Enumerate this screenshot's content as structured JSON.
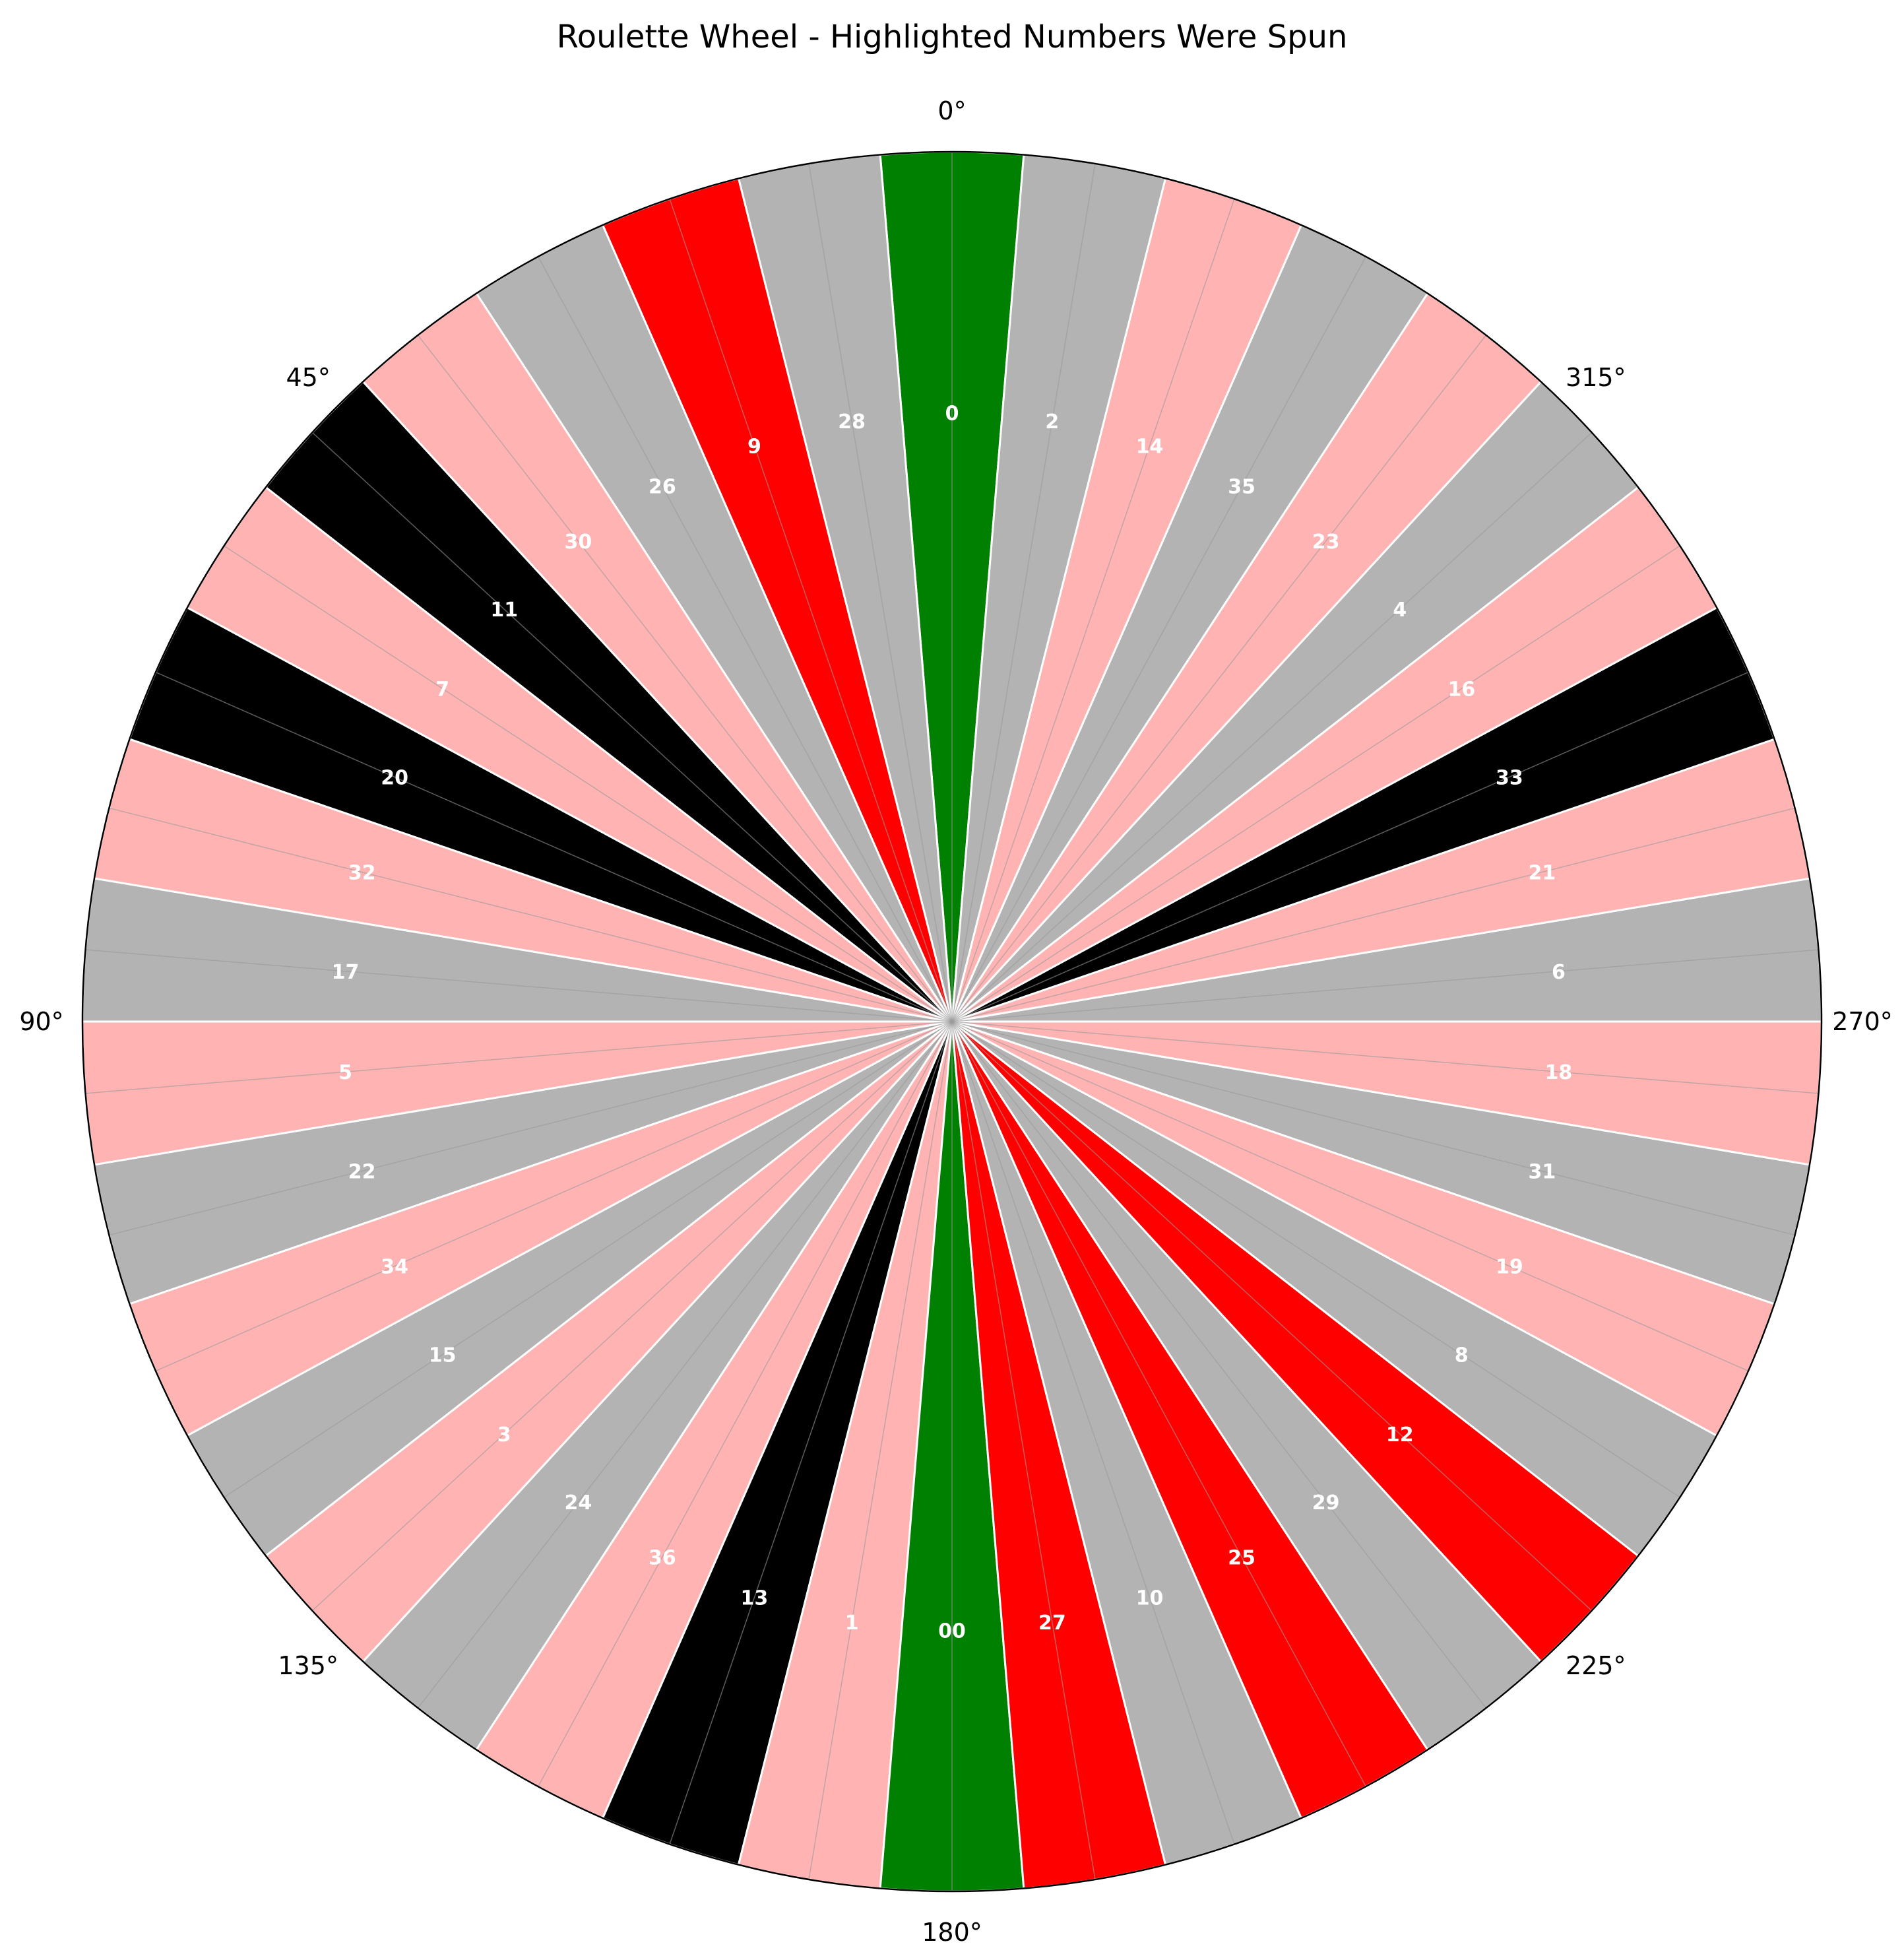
{
  "chart_data": {
    "type": "pie",
    "title": "Roulette Wheel - Highlighted Numbers Were Spun",
    "direction": "counterclockwise",
    "zero_location": "top",
    "angle_ticks": [
      "0°",
      "45°",
      "90°",
      "135°",
      "180°",
      "225°",
      "270°",
      "315°"
    ],
    "pockets": [
      {
        "label": "0",
        "color": "green",
        "spun": true
      },
      {
        "label": "28",
        "color": "black",
        "spun": false
      },
      {
        "label": "9",
        "color": "red",
        "spun": true
      },
      {
        "label": "26",
        "color": "black",
        "spun": false
      },
      {
        "label": "30",
        "color": "red",
        "spun": false
      },
      {
        "label": "11",
        "color": "black",
        "spun": true
      },
      {
        "label": "7",
        "color": "red",
        "spun": false
      },
      {
        "label": "20",
        "color": "black",
        "spun": true
      },
      {
        "label": "32",
        "color": "red",
        "spun": false
      },
      {
        "label": "17",
        "color": "black",
        "spun": false
      },
      {
        "label": "5",
        "color": "red",
        "spun": false
      },
      {
        "label": "22",
        "color": "black",
        "spun": false
      },
      {
        "label": "34",
        "color": "red",
        "spun": false
      },
      {
        "label": "15",
        "color": "black",
        "spun": false
      },
      {
        "label": "3",
        "color": "red",
        "spun": false
      },
      {
        "label": "24",
        "color": "black",
        "spun": false
      },
      {
        "label": "36",
        "color": "red",
        "spun": false
      },
      {
        "label": "13",
        "color": "black",
        "spun": true
      },
      {
        "label": "1",
        "color": "red",
        "spun": false
      },
      {
        "label": "00",
        "color": "green",
        "spun": true
      },
      {
        "label": "27",
        "color": "red",
        "spun": true
      },
      {
        "label": "10",
        "color": "black",
        "spun": false
      },
      {
        "label": "25",
        "color": "red",
        "spun": true
      },
      {
        "label": "29",
        "color": "black",
        "spun": false
      },
      {
        "label": "12",
        "color": "red",
        "spun": true
      },
      {
        "label": "8",
        "color": "black",
        "spun": false
      },
      {
        "label": "19",
        "color": "red",
        "spun": false
      },
      {
        "label": "31",
        "color": "black",
        "spun": false
      },
      {
        "label": "18",
        "color": "red",
        "spun": false
      },
      {
        "label": "6",
        "color": "black",
        "spun": false
      },
      {
        "label": "21",
        "color": "red",
        "spun": false
      },
      {
        "label": "33",
        "color": "black",
        "spun": true
      },
      {
        "label": "16",
        "color": "red",
        "spun": false
      },
      {
        "label": "4",
        "color": "black",
        "spun": false
      },
      {
        "label": "23",
        "color": "red",
        "spun": false
      },
      {
        "label": "35",
        "color": "black",
        "spun": false
      },
      {
        "label": "14",
        "color": "red",
        "spun": false
      },
      {
        "label": "2",
        "color": "black",
        "spun": false
      }
    ],
    "colors": {
      "red": "#ff0000",
      "black": "#000000",
      "green": "#008000",
      "red_unspun": "#ffb3b3",
      "black_unspun": "#b3b3b3"
    }
  }
}
